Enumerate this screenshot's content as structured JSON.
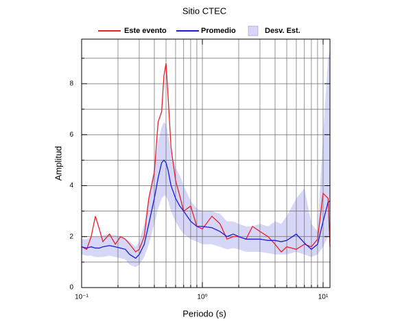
{
  "chart_data": {
    "type": "line",
    "title": "Sitio CTEC",
    "x_label": "Periodo (s)",
    "y_label": "Amplitud",
    "x_scale": "log",
    "xlim": [
      0.1,
      11.4
    ],
    "xticks": [
      {
        "value": 0.1,
        "label": "10⁻¹"
      },
      {
        "value": 1,
        "label": "10⁰"
      },
      {
        "value": 10,
        "label": "10¹"
      }
    ],
    "x_minor_ticks": [
      0.2,
      0.3,
      0.4,
      0.5,
      0.6,
      0.7,
      0.8,
      0.9,
      2,
      3,
      4,
      5,
      6,
      7,
      8,
      9
    ],
    "ylim": [
      0,
      9.75
    ],
    "yticks": [
      0,
      2,
      4,
      6,
      8
    ],
    "y_minor_ticks": [
      1,
      3,
      5,
      7,
      9
    ],
    "grid": true,
    "x": [
      0.1,
      0.11,
      0.12,
      0.13,
      0.14,
      0.15,
      0.17,
      0.19,
      0.21,
      0.23,
      0.25,
      0.28,
      0.3,
      0.33,
      0.36,
      0.4,
      0.43,
      0.46,
      0.48,
      0.5,
      0.52,
      0.55,
      0.6,
      0.65,
      0.7,
      0.8,
      0.9,
      1.0,
      1.2,
      1.4,
      1.6,
      1.8,
      2.0,
      2.3,
      2.6,
      3.0,
      3.5,
      4.0,
      4.5,
      5.0,
      6,
      7,
      8,
      9,
      10,
      11,
      11.4
    ],
    "band": {
      "name": "Desv. Est.",
      "color": "#d6d6f7",
      "upper": [
        1.9,
        1.9,
        2.0,
        2.0,
        2.0,
        2.05,
        2.1,
        2.05,
        2.0,
        1.9,
        1.8,
        1.6,
        1.8,
        2.5,
        3.6,
        4.8,
        5.7,
        6.3,
        6.5,
        6.4,
        6.0,
        5.3,
        4.7,
        4.4,
        4.0,
        3.4,
        3.1,
        3.0,
        3.0,
        2.9,
        2.6,
        2.6,
        2.5,
        2.4,
        2.4,
        2.5,
        2.4,
        2.6,
        2.5,
        2.8,
        3.5,
        3.9,
        2.5,
        2.2,
        6.0,
        9.0,
        9.3
      ],
      "lower": [
        1.3,
        1.25,
        1.25,
        1.2,
        1.2,
        1.2,
        1.25,
        1.2,
        1.15,
        1.1,
        0.9,
        0.8,
        0.9,
        1.2,
        1.7,
        2.5,
        3.1,
        3.5,
        3.6,
        3.6,
        3.4,
        3.0,
        2.6,
        2.3,
        2.1,
        1.9,
        1.8,
        1.7,
        1.7,
        1.6,
        1.5,
        1.55,
        1.5,
        1.4,
        1.4,
        1.4,
        1.35,
        1.3,
        1.3,
        1.3,
        1.4,
        1.3,
        1.2,
        1.3,
        1.6,
        2.0,
        2.1
      ]
    },
    "series": [
      {
        "name": "Este evento",
        "color": "#e8202a",
        "values": [
          1.6,
          1.5,
          2.0,
          2.8,
          2.3,
          1.8,
          2.1,
          1.7,
          2.0,
          1.9,
          1.7,
          1.4,
          1.5,
          2.0,
          3.5,
          4.5,
          6.5,
          6.9,
          8.3,
          8.8,
          7.5,
          5.5,
          4.2,
          3.6,
          3.0,
          3.2,
          2.4,
          2.3,
          2.8,
          2.5,
          1.9,
          2.0,
          2.0,
          1.9,
          2.4,
          2.2,
          2.0,
          1.7,
          1.4,
          1.6,
          1.5,
          1.7,
          1.6,
          1.9,
          3.7,
          3.5,
          1.6
        ]
      },
      {
        "name": "Promedio",
        "color": "#1a1adc",
        "values": [
          1.6,
          1.55,
          1.6,
          1.55,
          1.55,
          1.6,
          1.65,
          1.6,
          1.55,
          1.5,
          1.3,
          1.15,
          1.3,
          1.7,
          2.5,
          3.5,
          4.3,
          4.9,
          5.0,
          4.9,
          4.6,
          4.0,
          3.5,
          3.2,
          3.0,
          2.6,
          2.4,
          2.4,
          2.35,
          2.2,
          2.0,
          2.1,
          2.0,
          1.9,
          1.9,
          1.9,
          1.85,
          1.85,
          1.8,
          1.85,
          2.1,
          1.75,
          1.5,
          1.7,
          2.6,
          3.35,
          3.4
        ]
      }
    ]
  }
}
